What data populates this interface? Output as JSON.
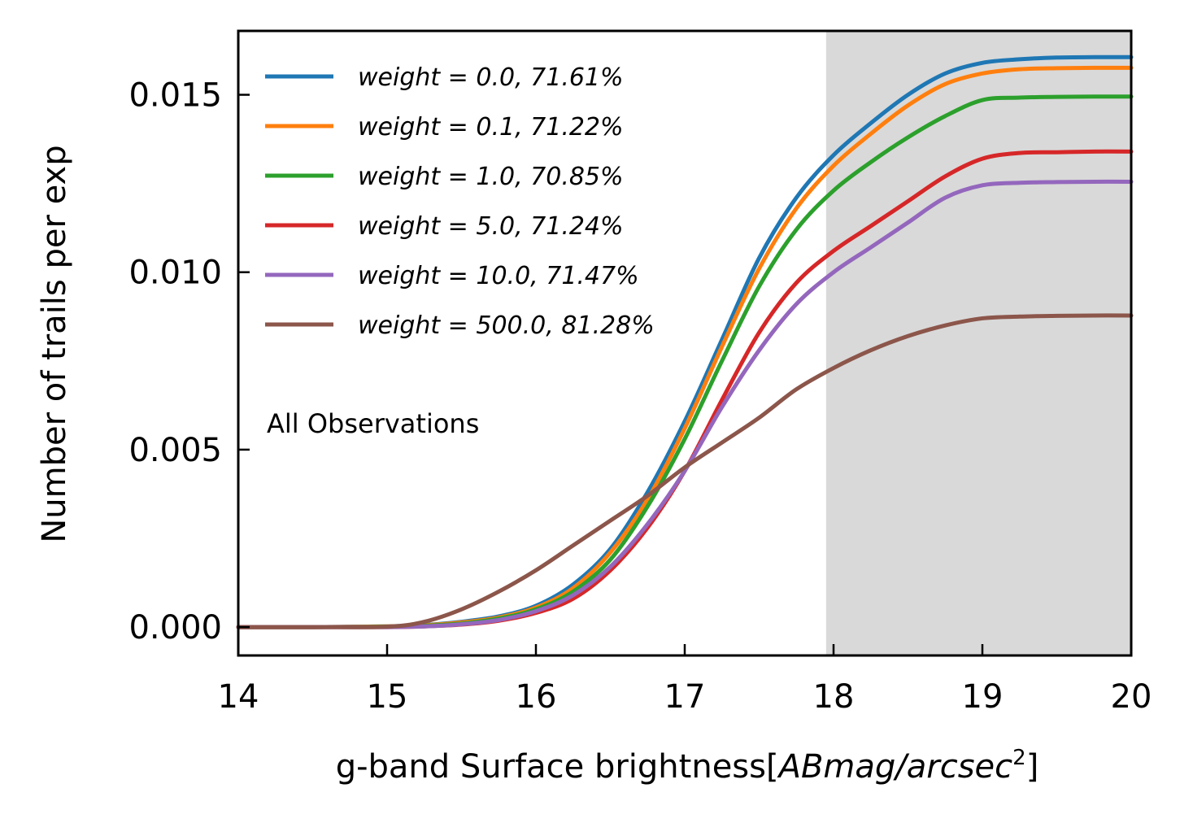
{
  "chart_data": {
    "type": "line",
    "title": "",
    "xlabel_prefix": "g-band Surface brightness[",
    "xlabel_math": "ABmag/arcsec",
    "xlabel_exponent": "2",
    "xlabel_suffix": "]",
    "ylabel": "Number of trails per exp",
    "xlim": [
      14,
      20
    ],
    "ylim": [
      -0.0008,
      0.0168
    ],
    "x_ticks": [
      14,
      15,
      16,
      17,
      18,
      19,
      20
    ],
    "x_tick_labels": [
      "14",
      "15",
      "16",
      "17",
      "18",
      "19",
      "20"
    ],
    "y_ticks": [
      0.0,
      0.005,
      0.01,
      0.015
    ],
    "y_tick_labels": [
      "0.000",
      "0.005",
      "0.010",
      "0.015"
    ],
    "shaded_region": {
      "x_start": 17.95,
      "x_end": 20,
      "color": "#d9d9d9"
    },
    "annotation": "All Observations",
    "legend_position": "upper-left",
    "x": [
      14.0,
      14.5,
      15.0,
      15.25,
      15.5,
      15.75,
      16.0,
      16.25,
      16.5,
      16.75,
      17.0,
      17.25,
      17.5,
      17.75,
      18.0,
      18.25,
      18.5,
      18.75,
      19.0,
      19.25,
      19.5,
      19.75,
      20.0
    ],
    "series": [
      {
        "name": "weight = 0.0, 71.61%",
        "math": "weight = 0.0, 71.61%",
        "color": "#1f77b4",
        "values": [
          0.0,
          0.0,
          2e-05,
          6e-05,
          0.00015,
          0.0003,
          0.0006,
          0.0012,
          0.0022,
          0.0038,
          0.0058,
          0.0081,
          0.0104,
          0.0121,
          0.0133,
          0.0142,
          0.015,
          0.0156,
          0.0159,
          0.016,
          0.01605,
          0.01606,
          0.01606
        ]
      },
      {
        "name": "weight = 0.1, 71.22%",
        "math": "weight = 0.1, 71.22%",
        "color": "#ff7f0e",
        "values": [
          0.0,
          0.0,
          2e-05,
          5e-05,
          0.00013,
          0.00027,
          0.00055,
          0.0011,
          0.0021,
          0.0036,
          0.0056,
          0.0079,
          0.0101,
          0.0118,
          0.013,
          0.0139,
          0.0147,
          0.0153,
          0.0156,
          0.01572,
          0.01575,
          0.01576,
          0.01576
        ]
      },
      {
        "name": "weight = 1.0, 70.85%",
        "math": "weight = 1.0, 70.85%",
        "color": "#2ca02c",
        "values": [
          0.0,
          0.0,
          1e-05,
          4e-05,
          0.0001,
          0.00024,
          0.0005,
          0.001,
          0.0019,
          0.0034,
          0.0053,
          0.0075,
          0.0096,
          0.0112,
          0.0123,
          0.0131,
          0.0138,
          0.0144,
          0.01485,
          0.01492,
          0.01494,
          0.01495,
          0.01495
        ]
      },
      {
        "name": "weight = 5.0, 71.24%",
        "math": "weight = 5.0, 71.24%",
        "color": "#d62728",
        "values": [
          0.0,
          0.0,
          0.0,
          2e-05,
          7e-05,
          0.00018,
          0.0004,
          0.0008,
          0.0016,
          0.0028,
          0.0044,
          0.0064,
          0.0083,
          0.0097,
          0.0106,
          0.0113,
          0.012,
          0.0127,
          0.0132,
          0.01336,
          0.01338,
          0.0134,
          0.0134
        ]
      },
      {
        "name": "weight = 10.0, 71.47%",
        "math": "weight = 10.0, 71.47%",
        "color": "#9467bd",
        "values": [
          0.0,
          0.0,
          0.0,
          2e-05,
          8e-05,
          0.0002,
          0.00045,
          0.0009,
          0.0017,
          0.0029,
          0.0044,
          0.0062,
          0.0078,
          0.0091,
          0.01,
          0.0107,
          0.0114,
          0.0121,
          0.01245,
          0.01252,
          0.01254,
          0.01255,
          0.01255
        ]
      },
      {
        "name": "weight = 500.0, 81.28%",
        "math": "weight = 500.0, 81.28%",
        "color": "#8c564b",
        "values": [
          0.0,
          0.0,
          1e-05,
          0.00015,
          0.0005,
          0.001,
          0.0016,
          0.0023,
          0.003,
          0.0037,
          0.0045,
          0.0052,
          0.0059,
          0.0067,
          0.0073,
          0.0078,
          0.0082,
          0.0085,
          0.0087,
          0.00875,
          0.00877,
          0.00878,
          0.00878
        ]
      }
    ]
  }
}
